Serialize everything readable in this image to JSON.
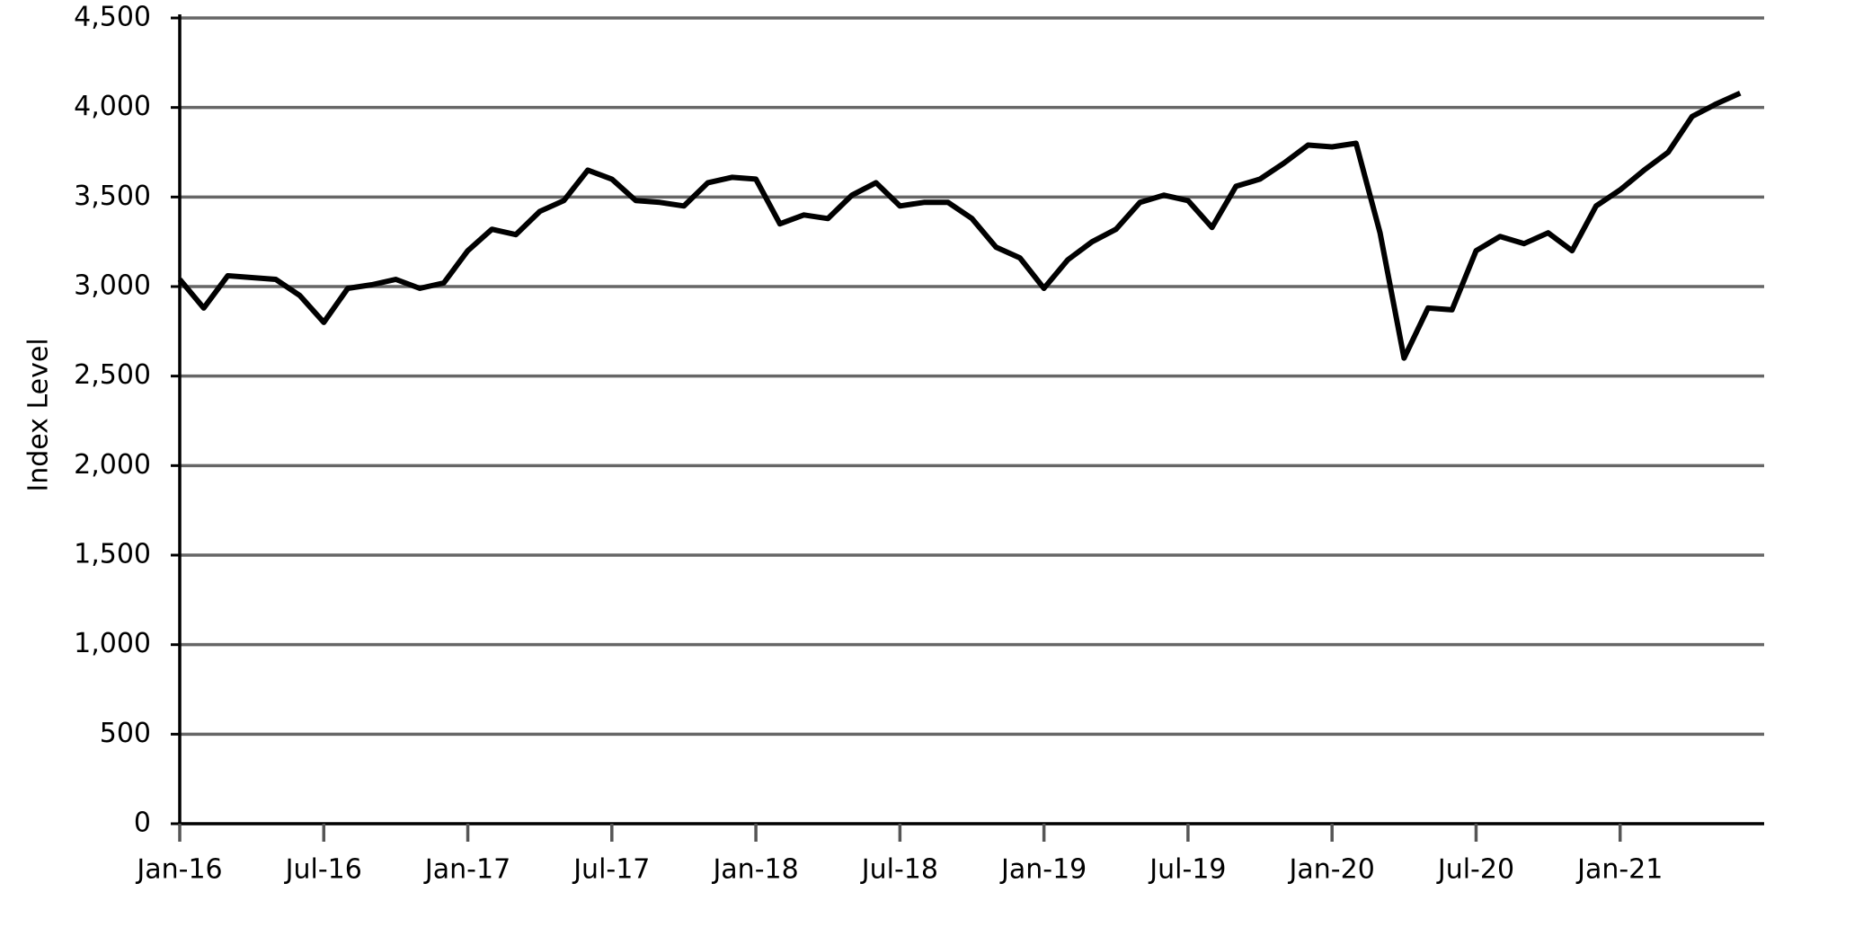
{
  "chart_data": {
    "type": "line",
    "y_label": "Index Level",
    "categories": [
      "Jan-16",
      null,
      null,
      null,
      null,
      null,
      "Jul-16",
      null,
      null,
      null,
      null,
      null,
      "Jan-17",
      null,
      null,
      null,
      null,
      null,
      "Jul-17",
      null,
      null,
      null,
      null,
      null,
      "Jan-18",
      null,
      null,
      null,
      null,
      null,
      "Jul-18",
      null,
      null,
      null,
      null,
      null,
      "Jan-19",
      null,
      null,
      null,
      null,
      null,
      "Jul-19",
      null,
      null,
      null,
      null,
      null,
      "Jan-20",
      null,
      null,
      null,
      null,
      null,
      "Jul-20",
      null,
      null,
      null,
      null,
      null,
      "Jan-21",
      null,
      null,
      null,
      null,
      null
    ],
    "values": [
      3040,
      2880,
      3060,
      3050,
      3040,
      2950,
      2800,
      2990,
      3010,
      3040,
      2990,
      3020,
      3200,
      3320,
      3290,
      3420,
      3480,
      3650,
      3600,
      3480,
      3470,
      3450,
      3580,
      3610,
      3600,
      3350,
      3400,
      3380,
      3510,
      3580,
      3450,
      3470,
      3470,
      3380,
      3220,
      3160,
      2990,
      3150,
      3250,
      3320,
      3470,
      3510,
      3480,
      3330,
      3560,
      3600,
      3690,
      3790,
      3780,
      3800,
      3300,
      2600,
      2880,
      2870,
      3200,
      3280,
      3240,
      3300,
      3200,
      3450,
      3540,
      3650,
      3750,
      3950,
      4020,
      4080
    ],
    "color": "#000000",
    "ylim": [
      0,
      4500
    ],
    "yticks": [
      0,
      500,
      {
        "value": 1000,
        "label": "1,000"
      },
      {
        "value": 1500,
        "label": "1,500"
      },
      {
        "value": 2000,
        "label": "2,000"
      },
      {
        "value": 2500,
        "label": "2,500"
      },
      {
        "value": 3000,
        "label": "3,000"
      },
      {
        "value": 3500,
        "label": "3,500"
      },
      {
        "value": 4000,
        "label": "4,000"
      },
      {
        "value": 4500,
        "label": "4,500"
      }
    ],
    "grid": true
  }
}
